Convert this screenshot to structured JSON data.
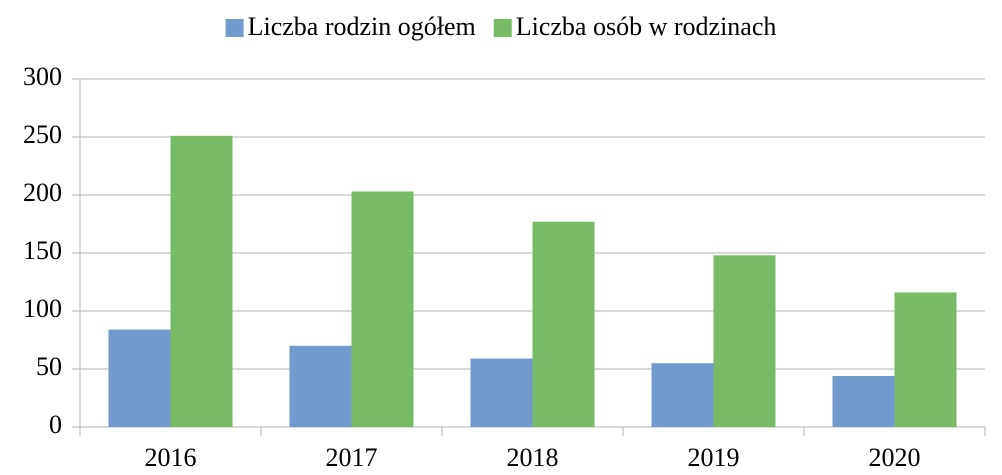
{
  "chart_data": {
    "type": "bar",
    "categories": [
      "2016",
      "2017",
      "2018",
      "2019",
      "2020"
    ],
    "series": [
      {
        "name": "Liczba rodzin ogółem",
        "color": "#729ACF",
        "values": [
          84,
          70,
          59,
          55,
          44
        ]
      },
      {
        "name": "Liczba osób w rodzinach",
        "color": "#77BC65",
        "values": [
          251,
          203,
          177,
          148,
          116
        ]
      }
    ],
    "ylim": [
      0,
      300
    ],
    "yticks": [
      0,
      50,
      100,
      150,
      200,
      250,
      300
    ],
    "grid": true,
    "legend": "top"
  }
}
